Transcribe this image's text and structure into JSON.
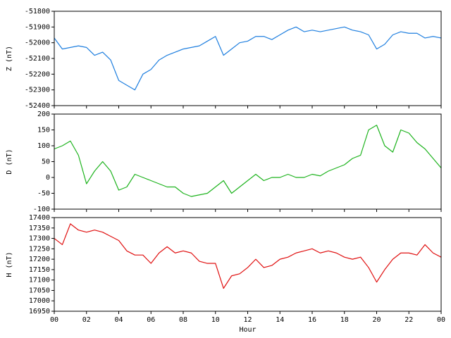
{
  "chart_data": [
    {
      "type": "line",
      "ylabel": "Z (nT)",
      "x": [
        0,
        0.5,
        1,
        1.5,
        2,
        2.5,
        3,
        3.5,
        4,
        4.5,
        5,
        5.5,
        6,
        6.5,
        7,
        7.5,
        8,
        8.5,
        9,
        9.5,
        10,
        10.5,
        11,
        11.5,
        12,
        12.5,
        13,
        13.5,
        14,
        14.5,
        15,
        15.5,
        16,
        16.5,
        17,
        17.5,
        18,
        18.5,
        19,
        19.5,
        20,
        20.5,
        21,
        21.5,
        22,
        22.5,
        23,
        23.5,
        24
      ],
      "series": [
        {
          "name": "Z",
          "color": "#1f7fdf",
          "values": [
            -51970,
            -52040,
            -52030,
            -52020,
            -52030,
            -52080,
            -52060,
            -52110,
            -52240,
            -52270,
            -52300,
            -52200,
            -52170,
            -52110,
            -52080,
            -52060,
            -52040,
            -52030,
            -52020,
            -51990,
            -51960,
            -52080,
            -52040,
            -52000,
            -51990,
            -51960,
            -51960,
            -51980,
            -51950,
            -51920,
            -51900,
            -51930,
            -51920,
            -51930,
            -51920,
            -51910,
            -51900,
            -51920,
            -51930,
            -51950,
            -52040,
            -52010,
            -51950,
            -51930,
            -51940,
            -51940,
            -51970,
            -51960,
            -51970
          ]
        }
      ],
      "xlim": [
        0,
        24
      ],
      "xticks": [
        {
          "value": 0,
          "label": "00"
        },
        {
          "value": 2,
          "label": "02"
        },
        {
          "value": 4,
          "label": "04"
        },
        {
          "value": 6,
          "label": "06"
        },
        {
          "value": 8,
          "label": "08"
        },
        {
          "value": 10,
          "label": "10"
        },
        12,
        14,
        16,
        18,
        20,
        22,
        {
          "value": 24,
          "label": "00"
        }
      ],
      "ylim": [
        -52400,
        -51800
      ],
      "yticks": [
        -52400,
        -52300,
        -52200,
        -52100,
        -52000,
        -51900,
        -51800
      ]
    },
    {
      "type": "line",
      "ylabel": "D (nT)",
      "x": [
        0,
        0.5,
        1,
        1.5,
        2,
        2.5,
        3,
        3.5,
        4,
        4.5,
        5,
        5.5,
        6,
        6.5,
        7,
        7.5,
        8,
        8.5,
        9,
        9.5,
        10,
        10.5,
        11,
        11.5,
        12,
        12.5,
        13,
        13.5,
        14,
        14.5,
        15,
        15.5,
        16,
        16.5,
        17,
        17.5,
        18,
        18.5,
        19,
        19.5,
        20,
        20.5,
        21,
        21.5,
        22,
        22.5,
        23,
        23.5,
        24
      ],
      "series": [
        {
          "name": "D",
          "color": "#1db31d",
          "values": [
            90,
            100,
            115,
            70,
            -20,
            20,
            50,
            20,
            -40,
            -30,
            10,
            0,
            -10,
            -20,
            -30,
            -30,
            -50,
            -60,
            -55,
            -50,
            -30,
            -10,
            -50,
            -30,
            -10,
            10,
            -10,
            0,
            0,
            10,
            0,
            0,
            10,
            5,
            20,
            30,
            40,
            60,
            70,
            150,
            165,
            100,
            80,
            150,
            140,
            110,
            90,
            60,
            30
          ]
        }
      ],
      "xlim": [
        0,
        24
      ],
      "xticks": [
        {
          "value": 0,
          "label": "00"
        },
        {
          "value": 2,
          "label": "02"
        },
        {
          "value": 4,
          "label": "04"
        },
        {
          "value": 6,
          "label": "06"
        },
        {
          "value": 8,
          "label": "08"
        },
        {
          "value": 10,
          "label": "10"
        },
        12,
        14,
        16,
        18,
        20,
        22,
        {
          "value": 24,
          "label": "00"
        }
      ],
      "ylim": [
        -100,
        200
      ],
      "yticks": [
        -100,
        -50,
        0,
        50,
        100,
        150,
        200
      ]
    },
    {
      "type": "line",
      "ylabel": "H (nT)",
      "xlabel": "Hour",
      "x": [
        0,
        0.5,
        1,
        1.5,
        2,
        2.5,
        3,
        3.5,
        4,
        4.5,
        5,
        5.5,
        6,
        6.5,
        7,
        7.5,
        8,
        8.5,
        9,
        9.5,
        10,
        10.5,
        11,
        11.5,
        12,
        12.5,
        13,
        13.5,
        14,
        14.5,
        15,
        15.5,
        16,
        16.5,
        17,
        17.5,
        18,
        18.5,
        19,
        19.5,
        20,
        20.5,
        21,
        21.5,
        22,
        22.5,
        23,
        23.5,
        24
      ],
      "series": [
        {
          "name": "H",
          "color": "#e01010",
          "values": [
            17300,
            17270,
            17370,
            17340,
            17330,
            17340,
            17330,
            17310,
            17290,
            17240,
            17220,
            17220,
            17180,
            17230,
            17260,
            17230,
            17240,
            17230,
            17190,
            17180,
            17180,
            17060,
            17120,
            17130,
            17160,
            17200,
            17160,
            17170,
            17200,
            17210,
            17230,
            17240,
            17250,
            17230,
            17240,
            17230,
            17210,
            17200,
            17210,
            17160,
            17090,
            17150,
            17200,
            17230,
            17230,
            17220,
            17270,
            17230,
            17210
          ]
        }
      ],
      "xlim": [
        0,
        24
      ],
      "xticks": [
        {
          "value": 0,
          "label": "00"
        },
        {
          "value": 2,
          "label": "02"
        },
        {
          "value": 4,
          "label": "04"
        },
        {
          "value": 6,
          "label": "06"
        },
        {
          "value": 8,
          "label": "08"
        },
        {
          "value": 10,
          "label": "10"
        },
        12,
        14,
        16,
        18,
        20,
        22,
        {
          "value": 24,
          "label": "00"
        }
      ],
      "ylim": [
        16950,
        17400
      ],
      "yticks": [
        16950,
        17000,
        17050,
        17100,
        17150,
        17200,
        17250,
        17300,
        17350,
        17400
      ]
    }
  ]
}
